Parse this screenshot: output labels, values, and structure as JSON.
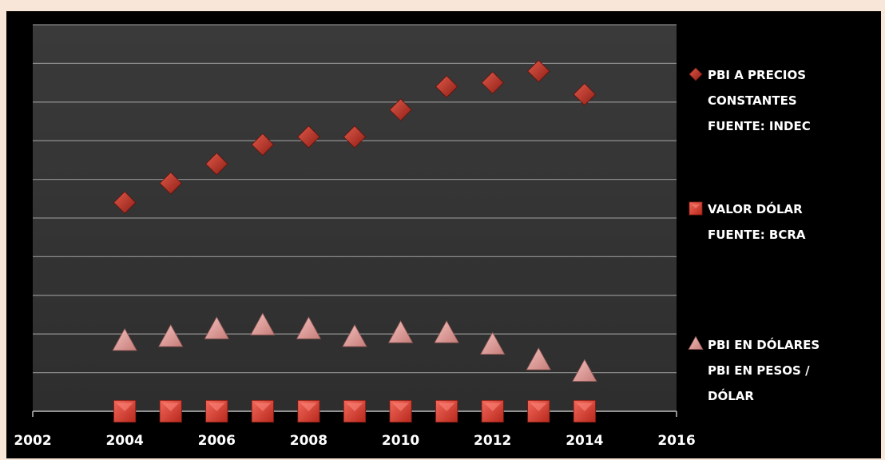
{
  "chart_data": {
    "type": "scatter",
    "xlim": [
      2002,
      2016
    ],
    "ylim": [
      0,
      10
    ],
    "x_ticks": [
      2002,
      2004,
      2006,
      2008,
      2010,
      2012,
      2014,
      2016
    ],
    "grid": true,
    "legend_position": "right",
    "series": [
      {
        "legend_lines": [
          "PBI A PRECIOS",
          "CONSTANTES",
          "FUENTE: INDEC"
        ],
        "marker": "diamond",
        "color": "#c0392b",
        "x": [
          2004,
          2005,
          2006,
          2007,
          2008,
          2009,
          2010,
          2011,
          2012,
          2013,
          2014
        ],
        "y": [
          5.4,
          5.9,
          6.4,
          6.9,
          7.1,
          7.1,
          7.8,
          8.4,
          8.5,
          8.8,
          8.2
        ]
      },
      {
        "legend_lines": [
          "VALOR DÓLAR",
          "FUENTE: BCRA"
        ],
        "marker": "square",
        "color": "#e74c3c",
        "x": [
          2004,
          2005,
          2006,
          2007,
          2008,
          2009,
          2010,
          2011,
          2012,
          2013,
          2014
        ],
        "y": [
          0,
          0,
          0,
          0,
          0,
          0,
          0,
          0,
          0,
          0,
          0
        ]
      },
      {
        "legend_lines": [
          "PBI EN DÓLARES",
          "PBI EN PESOS /",
          "DÓLAR"
        ],
        "marker": "triangle",
        "color": "#e8a3a3",
        "x": [
          2004,
          2005,
          2006,
          2007,
          2008,
          2009,
          2010,
          2011,
          2012,
          2013,
          2014
        ],
        "y": [
          1.8,
          1.9,
          2.1,
          2.2,
          2.1,
          1.9,
          2.0,
          2.0,
          1.7,
          1.3,
          1.0
        ]
      }
    ]
  }
}
